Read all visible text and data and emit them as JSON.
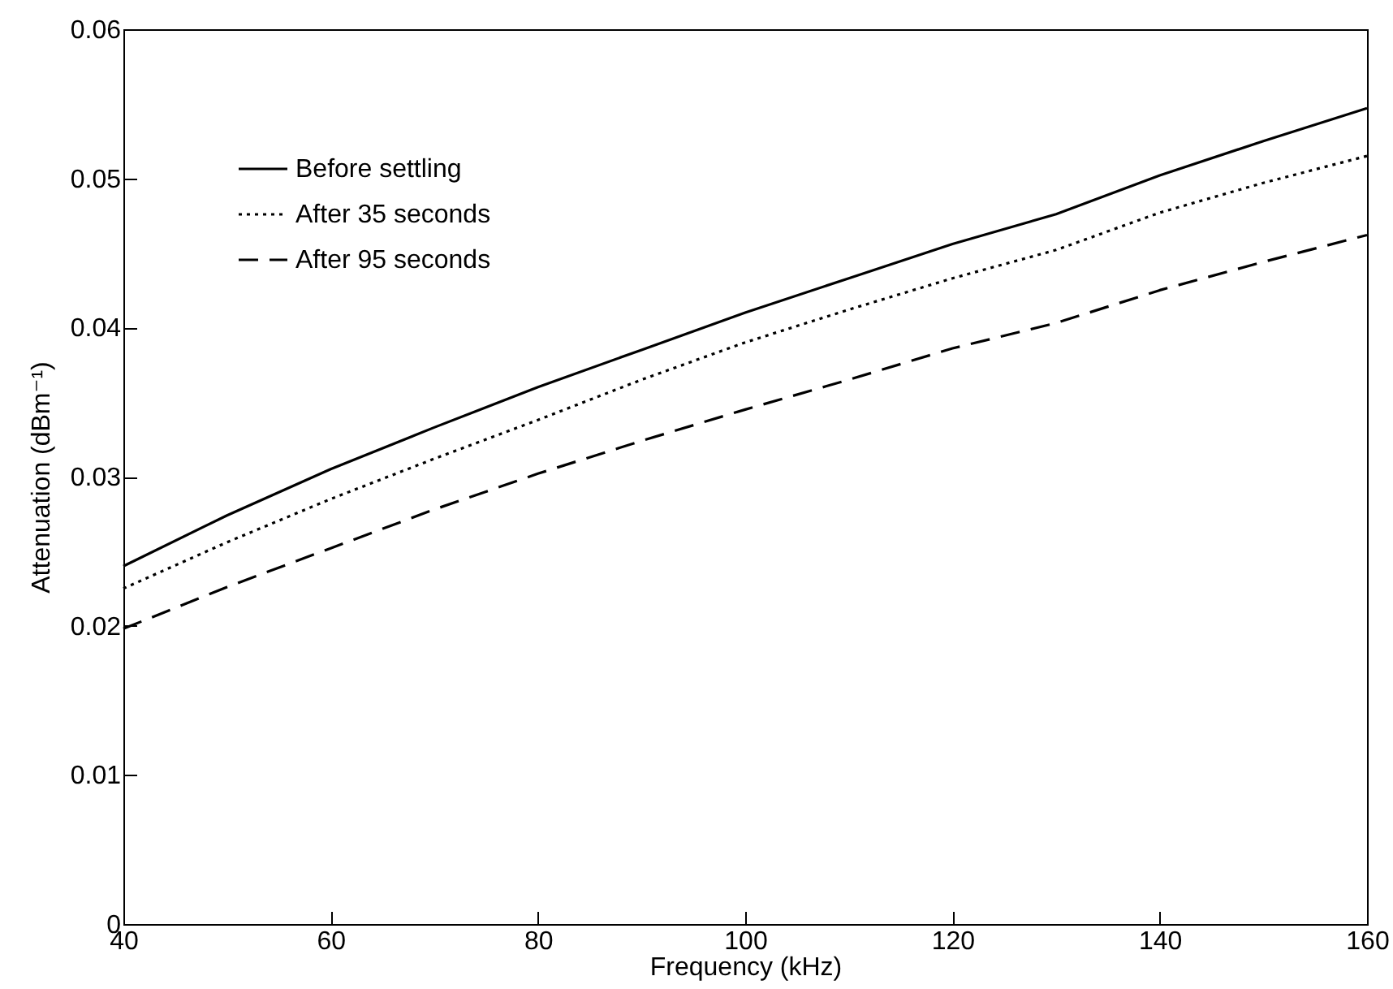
{
  "chart_data": {
    "type": "line",
    "xlabel": "Frequency (kHz)",
    "ylabel": "Attenuation (dBm⁻¹)",
    "x": [
      40,
      50,
      60,
      70,
      80,
      90,
      100,
      110,
      120,
      130,
      140,
      150,
      160
    ],
    "series": [
      {
        "name": "Before settling",
        "color": "#000000",
        "line_style": "solid",
        "values": [
          0.024,
          0.0274,
          0.0305,
          0.0333,
          0.036,
          0.0385,
          0.041,
          0.0433,
          0.0456,
          0.0476,
          0.0502,
          0.0525,
          0.0547
        ]
      },
      {
        "name": "After 35 seconds",
        "color": "#000000",
        "line_style": "dotted",
        "values": [
          0.0225,
          0.0256,
          0.0285,
          0.0312,
          0.0338,
          0.0365,
          0.039,
          0.0412,
          0.0433,
          0.0452,
          0.0477,
          0.0497,
          0.0515
        ]
      },
      {
        "name": "After 95 seconds",
        "color": "#000000",
        "line_style": "dashed",
        "values": [
          0.0198,
          0.0226,
          0.0252,
          0.0278,
          0.0302,
          0.0324,
          0.0345,
          0.0365,
          0.0386,
          0.0403,
          0.0425,
          0.0444,
          0.0462
        ]
      }
    ],
    "xlim": [
      40,
      160
    ],
    "xticks": [
      40,
      60,
      80,
      100,
      120,
      140,
      160
    ],
    "ylim": [
      0,
      0.06
    ],
    "yticks": [
      0,
      0.01,
      0.02,
      0.03,
      0.04,
      0.05,
      0.06
    ],
    "grid": false,
    "legend": "top left",
    "marker": "none"
  }
}
